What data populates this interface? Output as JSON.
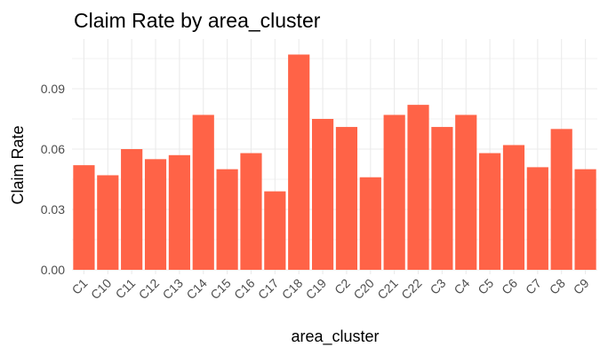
{
  "chart_data": {
    "type": "bar",
    "title": "Claim Rate by area_cluster",
    "xlabel": "area_cluster",
    "ylabel": "Claim Rate",
    "categories": [
      "C1",
      "C10",
      "C11",
      "C12",
      "C13",
      "C14",
      "C15",
      "C16",
      "C17",
      "C18",
      "C19",
      "C2",
      "C20",
      "C21",
      "C22",
      "C3",
      "C4",
      "C5",
      "C6",
      "C7",
      "C8",
      "C9"
    ],
    "values": [
      0.052,
      0.047,
      0.06,
      0.055,
      0.057,
      0.077,
      0.05,
      0.058,
      0.039,
      0.107,
      0.075,
      0.071,
      0.046,
      0.077,
      0.082,
      0.071,
      0.077,
      0.058,
      0.062,
      0.051,
      0.07,
      0.05
    ],
    "yticks": [
      0.0,
      0.03,
      0.06,
      0.09
    ],
    "ytick_labels": [
      "0.00",
      "0.03",
      "0.06",
      "0.09"
    ],
    "ylim": [
      0,
      0.11
    ],
    "grid": true,
    "bar_color": "#FF6347",
    "grid_color": "#EBEBEB",
    "background": "#FFFFFF"
  }
}
